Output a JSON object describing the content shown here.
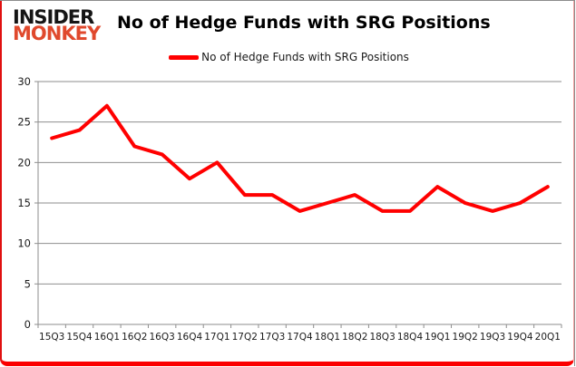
{
  "header": {
    "logo_line1": "INSIDER",
    "logo_line2": "MONKEY",
    "title": "No of Hedge Funds with SRG Positions"
  },
  "legend": {
    "label": "No of Hedge Funds with SRG Positions"
  },
  "colors": {
    "series_line": "#ff0000",
    "gridline": "#8e8e8e",
    "axis_line": "#8e8e8e",
    "axis_text": "#1a1a1a",
    "logo_black": "#151515",
    "logo_red": "#e0492d",
    "frame_red": "#e01010"
  },
  "chart_data": {
    "type": "line",
    "title": "No of Hedge Funds with SRG Positions",
    "categories": [
      "15Q3",
      "15Q4",
      "16Q1",
      "16Q2",
      "16Q3",
      "16Q4",
      "17Q1",
      "17Q2",
      "17Q3",
      "17Q4",
      "18Q1",
      "18Q2",
      "18Q3",
      "18Q4",
      "19Q1",
      "19Q2",
      "19Q3",
      "19Q4",
      "20Q1"
    ],
    "series": [
      {
        "name": "No of Hedge Funds with SRG Positions",
        "color": "#ff0000",
        "values": [
          23,
          24,
          27,
          22,
          21,
          18,
          20,
          16,
          16,
          14,
          15,
          16,
          14,
          14,
          17,
          15,
          14,
          15,
          17
        ]
      }
    ],
    "xlabel": "",
    "ylabel": "",
    "ylim": [
      0,
      30
    ],
    "ytick_interval": 5,
    "grid": true,
    "legend_position": "top"
  }
}
